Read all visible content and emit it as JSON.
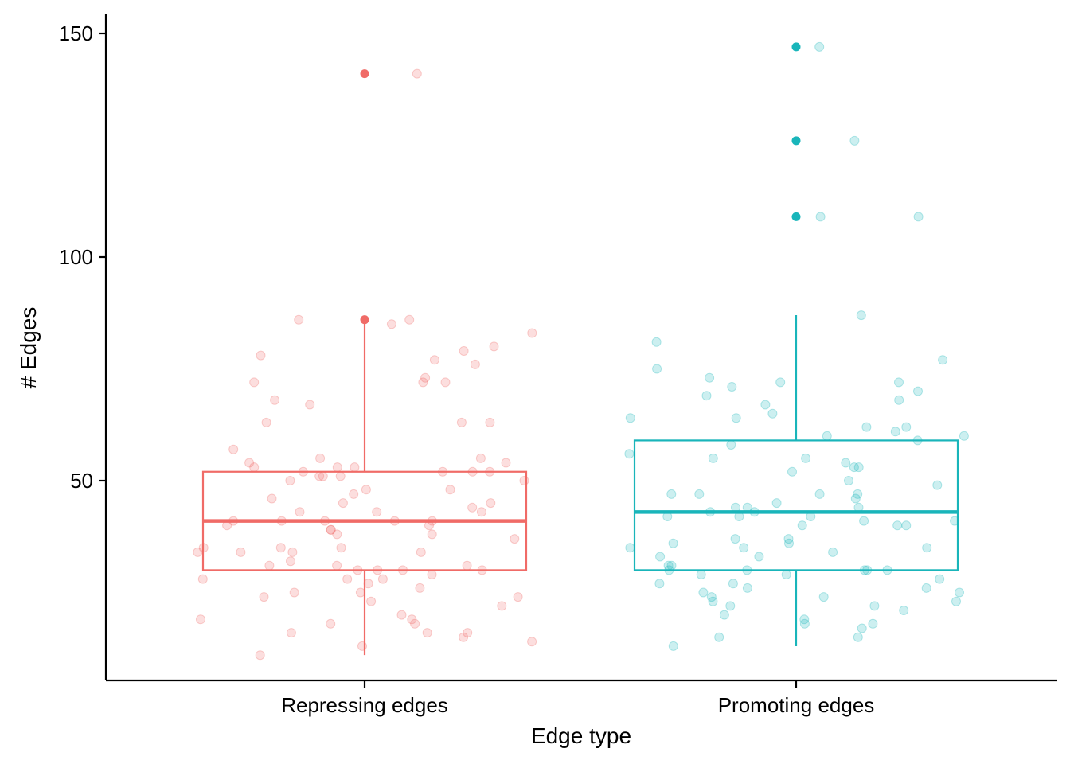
{
  "chart_data": {
    "type": "boxplot",
    "xlabel": "Edge type",
    "ylabel": "# Edges",
    "ylim": [
      6,
      154
    ],
    "yticks": [
      50,
      100,
      150
    ],
    "categories": [
      "Repressing edges",
      "Promoting edges"
    ],
    "grid": false,
    "legend": "none",
    "colors": {
      "Repressing edges": "#F06B67",
      "Promoting edges": "#19B5BA"
    },
    "boxes": [
      {
        "category": "Repressing edges",
        "q1": 30,
        "median": 41,
        "q3": 52,
        "whisker_low": 11,
        "whisker_high": 86,
        "outliers": [
          86,
          141
        ]
      },
      {
        "category": "Promoting edges",
        "q1": 30,
        "median": 43,
        "q3": 59,
        "whisker_low": 13,
        "whisker_high": 87,
        "outliers": [
          109,
          126,
          147
        ]
      }
    ],
    "points": {
      "Repressing edges": [
        141,
        86,
        86,
        83,
        73,
        72,
        72,
        80,
        77,
        76,
        72,
        67,
        79,
        78,
        85,
        68,
        63,
        63,
        63,
        55,
        57,
        53,
        52,
        51,
        50,
        55,
        54,
        52,
        53,
        51,
        52,
        53,
        54,
        52,
        51,
        48,
        50,
        47,
        48,
        46,
        45,
        45,
        44,
        43,
        43,
        43,
        41,
        41,
        41,
        40,
        40,
        39,
        38,
        41,
        41,
        39,
        38,
        37,
        35,
        35,
        35,
        34,
        34,
        34,
        34,
        32,
        31,
        31,
        31,
        30,
        30,
        30,
        30,
        29,
        28,
        28,
        28,
        27,
        26,
        25,
        25,
        24,
        24,
        23,
        22,
        20,
        19,
        19,
        18,
        18,
        16,
        16,
        16,
        15,
        14,
        13,
        11
      ],
      "Promoting edges": [
        147,
        126,
        109,
        109,
        87,
        81,
        77,
        75,
        73,
        72,
        72,
        71,
        70,
        69,
        68,
        67,
        65,
        64,
        64,
        62,
        62,
        61,
        60,
        60,
        59,
        58,
        56,
        55,
        55,
        54,
        53,
        53,
        52,
        50,
        49,
        47,
        47,
        47,
        47,
        46,
        45,
        44,
        44,
        44,
        43,
        43,
        42,
        42,
        42,
        41,
        41,
        40,
        40,
        40,
        37,
        37,
        36,
        36,
        35,
        35,
        35,
        34,
        33,
        33,
        31,
        31,
        30,
        30,
        30,
        30,
        30,
        29,
        29,
        28,
        27,
        27,
        26,
        26,
        25,
        25,
        24,
        24,
        23,
        23,
        22,
        22,
        21,
        20,
        19,
        18,
        18,
        17,
        15,
        15,
        13
      ]
    }
  }
}
